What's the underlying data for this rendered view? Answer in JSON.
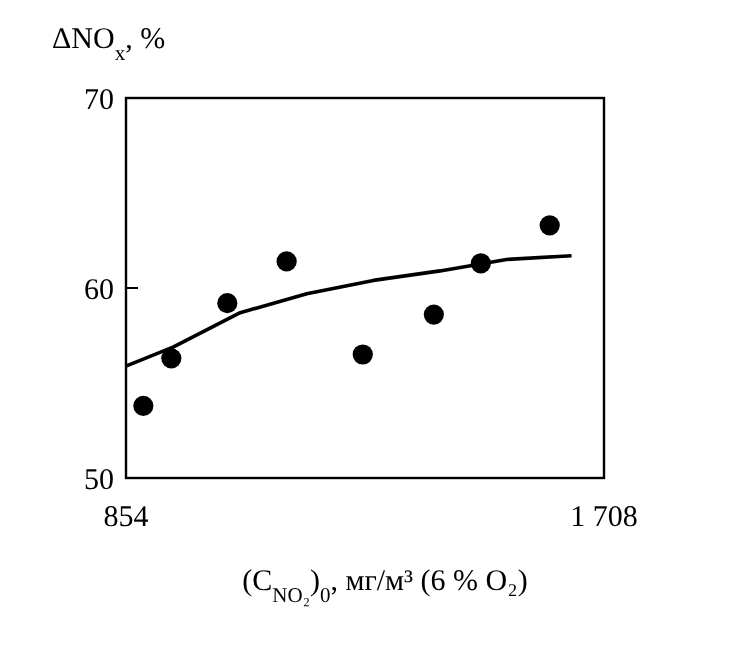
{
  "chart_data": {
    "type": "scatter",
    "ylabel": "ΔNO$_{x}$, %",
    "xlabel": "(C$_{NO₂}$)$_{0}$, мг/м³ (6 % O₂)",
    "xlim": [
      854,
      1708
    ],
    "ylim": [
      50,
      70
    ],
    "xticks": [
      854,
      {
        "value": 1708,
        "label": "1 708"
      }
    ],
    "yticks": [
      50,
      60,
      70
    ],
    "grid": false,
    "series": [
      {
        "marker": "circle",
        "color": "#000000",
        "x": [
          885,
          935,
          1035,
          1141,
          1277,
          1404,
          1488,
          1611
        ],
        "values": [
          53.8,
          56.3,
          59.2,
          61.4,
          56.5,
          58.6,
          61.3,
          63.3
        ]
      },
      {
        "type": "line",
        "marker": "none",
        "line_style": "solid",
        "color": "#000000",
        "x": [
          855,
          939,
          1058,
          1177,
          1296,
          1415,
          1534,
          1650
        ],
        "values": [
          55.9,
          56.9,
          58.7,
          59.7,
          60.4,
          60.9,
          61.5,
          61.7
        ]
      }
    ]
  }
}
